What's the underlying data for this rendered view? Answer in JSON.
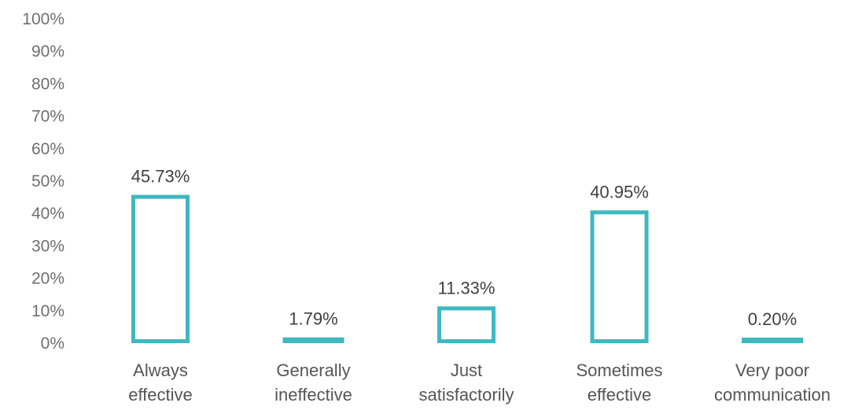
{
  "chart_data": {
    "type": "bar",
    "categories": [
      [
        "Always",
        "effective"
      ],
      [
        "Generally",
        "ineffective"
      ],
      [
        "Just",
        "satisfactorily"
      ],
      [
        "Sometimes",
        "effective"
      ],
      [
        "Very poor",
        "communication"
      ]
    ],
    "values": [
      45.73,
      1.79,
      11.33,
      40.95,
      0.2
    ],
    "data_labels": [
      "45.73%",
      "1.79%",
      "11.33%",
      "40.95%",
      "0.20%"
    ],
    "ylim": [
      0,
      100
    ],
    "yticks": [
      0,
      10,
      20,
      30,
      40,
      50,
      60,
      70,
      80,
      90,
      100
    ],
    "ytick_labels": [
      "0%",
      "10%",
      "20%",
      "30%",
      "40%",
      "50%",
      "60%",
      "70%",
      "80%",
      "90%",
      "100%"
    ],
    "grid": false,
    "title": "",
    "xlabel": "",
    "ylabel": "",
    "colors": {
      "bar_stroke": "#3fb8c0",
      "bar_fill": "#ffffff"
    }
  }
}
